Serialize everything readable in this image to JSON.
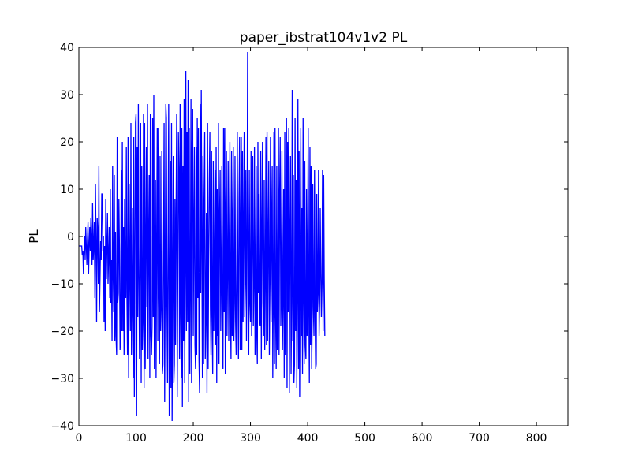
{
  "chart_data": {
    "type": "line",
    "title": "paper_ibstrat104v1v2 PL",
    "xlabel": "",
    "ylabel": "PL",
    "xlim": [
      0,
      855
    ],
    "ylim": [
      -40,
      40
    ],
    "x_ticks": [
      0,
      100,
      200,
      300,
      400,
      500,
      600,
      700,
      800
    ],
    "y_ticks": [
      -40,
      -30,
      -20,
      -10,
      0,
      10,
      20,
      30,
      40
    ],
    "x_tick_labels": [
      "0",
      "100",
      "200",
      "300",
      "400",
      "500",
      "600",
      "700",
      "800"
    ],
    "y_tick_labels": [
      "−40",
      "−30",
      "−20",
      "−10",
      "0",
      "10",
      "20",
      "30",
      "40"
    ],
    "grid": false,
    "series": [
      {
        "color": "#0000ff",
        "x_start": 0,
        "x_step": 1,
        "y": [
          -2,
          -2,
          -2,
          -2,
          -2,
          -2,
          -4,
          -3,
          -8,
          -3,
          0,
          -5,
          2,
          -2,
          -6,
          -1,
          3,
          -8,
          -2,
          2,
          -3,
          4,
          -1,
          -6,
          7,
          -5,
          -2,
          3,
          -13,
          11,
          -1,
          -18,
          4,
          1,
          -10,
          15,
          -16,
          -9,
          -1,
          -5,
          9,
          9,
          -3,
          0,
          -18,
          -2,
          -20,
          8,
          -9,
          -2,
          5,
          -10,
          -4,
          2,
          -13,
          10,
          -14,
          -5,
          -22,
          15,
          -8,
          -16,
          13,
          -22,
          1,
          -21,
          -25,
          21,
          -14,
          -12,
          8,
          -3,
          -24,
          -21,
          14,
          -20,
          20,
          -20,
          2,
          -25,
          8,
          -8,
          -13,
          19,
          -12,
          -25,
          21,
          -30,
          11,
          -8,
          -20,
          24,
          -25,
          -15,
          6,
          -30,
          21,
          -34,
          -7,
          24,
          26,
          -38,
          19,
          -17,
          28,
          -9,
          -26,
          -4,
          24,
          -31,
          15,
          -24,
          -18,
          26,
          -32,
          24,
          -28,
          -2,
          19,
          -15,
          28,
          -26,
          0,
          13,
          -30,
          26,
          -21,
          -25,
          -19,
          25,
          -17,
          30,
          -28,
          -7,
          12,
          -30,
          -1,
          23,
          -22,
          23,
          -13,
          -27,
          17,
          -20,
          -15,
          18,
          -29,
          -27,
          -4,
          24,
          -35,
          -9,
          28,
          25,
          -15,
          -31,
          -2,
          28,
          -38,
          -13,
          16,
          -32,
          24,
          -39,
          -9,
          17,
          -31,
          -27,
          8,
          -23,
          6,
          26,
          -34,
          -7,
          22,
          14,
          -26,
          28,
          -17,
          -30,
          23,
          -36,
          15,
          -22,
          29,
          -31,
          -7,
          35,
          -20,
          22,
          -18,
          33,
          -35,
          23,
          -29,
          -12,
          29,
          -31,
          20,
          27,
          -21,
          1,
          19,
          -23,
          -28,
          19,
          -25,
          25,
          -13,
          23,
          -26,
          -33,
          28,
          -12,
          31,
          -3,
          -30,
          17,
          -27,
          8,
          22,
          -26,
          -17,
          5,
          -33,
          24,
          -28,
          -4,
          12,
          22,
          -15,
          -25,
          18,
          -17,
          -29,
          16,
          -20,
          -6,
          14,
          -23,
          19,
          -31,
          10,
          -21,
          24,
          -27,
          4,
          14,
          -20,
          -9,
          15,
          -24,
          -28,
          23,
          -16,
          23,
          -29,
          6,
          18,
          -21,
          -7,
          16,
          -22,
          -4,
          20,
          -13,
          -26,
          18,
          -21,
          3,
          19,
          -22,
          -14,
          17,
          -18,
          -25,
          -5,
          22,
          -10,
          -26,
          8,
          21,
          -24,
          2,
          21,
          -24,
          18,
          -18,
          2,
          22,
          -17,
          -9,
          14,
          -22,
          -5,
          39,
          -5,
          -25,
          14,
          -14,
          -18,
          18,
          -21,
          1,
          17,
          -19,
          -10,
          19,
          -25,
          -8,
          15,
          -20,
          -27,
          20,
          -12,
          9,
          -17,
          -19,
          18,
          -26,
          1,
          20,
          -14,
          -21,
          12,
          -24,
          -10,
          21,
          -23,
          22,
          -22,
          -1,
          16,
          -25,
          -10,
          21,
          -18,
          2,
          15,
          -30,
          -11,
          22,
          -27,
          23,
          -17,
          -28,
          15,
          -24,
          -11,
          23,
          -25,
          9,
          21,
          -19,
          -12,
          18,
          -24,
          -13,
          10,
          -30,
          22,
          -25,
          -2,
          25,
          -32,
          20,
          -16,
          23,
          -33,
          1,
          17,
          -29,
          -14,
          31,
          -22,
          13,
          -31,
          -27,
          25,
          -20,
          12,
          -32,
          -13,
          29,
          -28,
          18,
          -34,
          -3,
          23,
          -21,
          6,
          -29,
          25,
          -13,
          -27,
          16,
          -23,
          -26,
          10,
          -21,
          -2,
          23,
          -13,
          -31,
          19,
          -23,
          15,
          -28,
          -17,
          11,
          -15,
          -21,
          14,
          -17,
          -28,
          -27,
          9,
          -16,
          -12,
          14,
          -21,
          -14,
          6,
          -8,
          -17,
          -9,
          14,
          -20,
          13,
          -9,
          -21
        ]
      }
    ]
  }
}
